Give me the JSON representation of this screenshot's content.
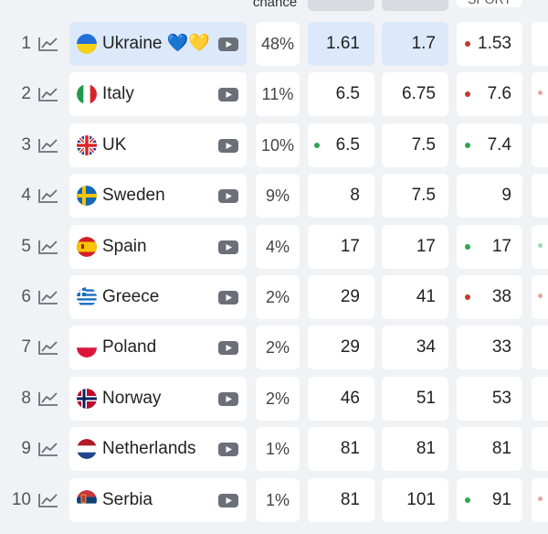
{
  "header": {
    "chance_label": "chance",
    "sport_label": "SPORT"
  },
  "colors": {
    "selected_bg": "#dbe9fb",
    "up_dot": "#2ea44f",
    "down_dot": "#c0392b",
    "icon_gray": "#6b6f78"
  },
  "rows": [
    {
      "rank": "1",
      "country": "Ukraine",
      "emoji": "💙💛",
      "flag": "ukraine",
      "chance": "48%",
      "odds": [
        "1.61",
        "1.7",
        "1.53"
      ],
      "dots": [
        "",
        "",
        "red"
      ],
      "edge_dot": "",
      "selected": true
    },
    {
      "rank": "2",
      "country": "Italy",
      "emoji": "",
      "flag": "italy",
      "chance": "11%",
      "odds": [
        "6.5",
        "6.75",
        "7.6"
      ],
      "dots": [
        "",
        "",
        "red"
      ],
      "edge_dot": "red",
      "selected": false
    },
    {
      "rank": "3",
      "country": "UK",
      "emoji": "",
      "flag": "uk",
      "chance": "10%",
      "odds": [
        "6.5",
        "7.5",
        "7.4"
      ],
      "dots": [
        "green",
        "",
        "green"
      ],
      "edge_dot": "",
      "selected": false
    },
    {
      "rank": "4",
      "country": "Sweden",
      "emoji": "",
      "flag": "sweden",
      "chance": "9%",
      "odds": [
        "8",
        "7.5",
        "9"
      ],
      "dots": [
        "",
        "",
        ""
      ],
      "edge_dot": "",
      "selected": false
    },
    {
      "rank": "5",
      "country": "Spain",
      "emoji": "",
      "flag": "spain",
      "chance": "4%",
      "odds": [
        "17",
        "17",
        "17"
      ],
      "dots": [
        "",
        "",
        "green"
      ],
      "edge_dot": "green",
      "selected": false
    },
    {
      "rank": "6",
      "country": "Greece",
      "emoji": "",
      "flag": "greece",
      "chance": "2%",
      "odds": [
        "29",
        "41",
        "38"
      ],
      "dots": [
        "",
        "",
        "red"
      ],
      "edge_dot": "red",
      "selected": false
    },
    {
      "rank": "7",
      "country": "Poland",
      "emoji": "",
      "flag": "poland",
      "chance": "2%",
      "odds": [
        "29",
        "34",
        "33"
      ],
      "dots": [
        "",
        "",
        ""
      ],
      "edge_dot": "",
      "selected": false
    },
    {
      "rank": "8",
      "country": "Norway",
      "emoji": "",
      "flag": "norway",
      "chance": "2%",
      "odds": [
        "46",
        "51",
        "53"
      ],
      "dots": [
        "",
        "",
        ""
      ],
      "edge_dot": "",
      "selected": false
    },
    {
      "rank": "9",
      "country": "Netherlands",
      "emoji": "",
      "flag": "netherlands",
      "chance": "1%",
      "odds": [
        "81",
        "81",
        "81"
      ],
      "dots": [
        "",
        "",
        ""
      ],
      "edge_dot": "",
      "selected": false
    },
    {
      "rank": "10",
      "country": "Serbia",
      "emoji": "",
      "flag": "serbia",
      "chance": "1%",
      "odds": [
        "81",
        "101",
        "91"
      ],
      "dots": [
        "",
        "",
        "green"
      ],
      "edge_dot": "red",
      "selected": false
    }
  ]
}
